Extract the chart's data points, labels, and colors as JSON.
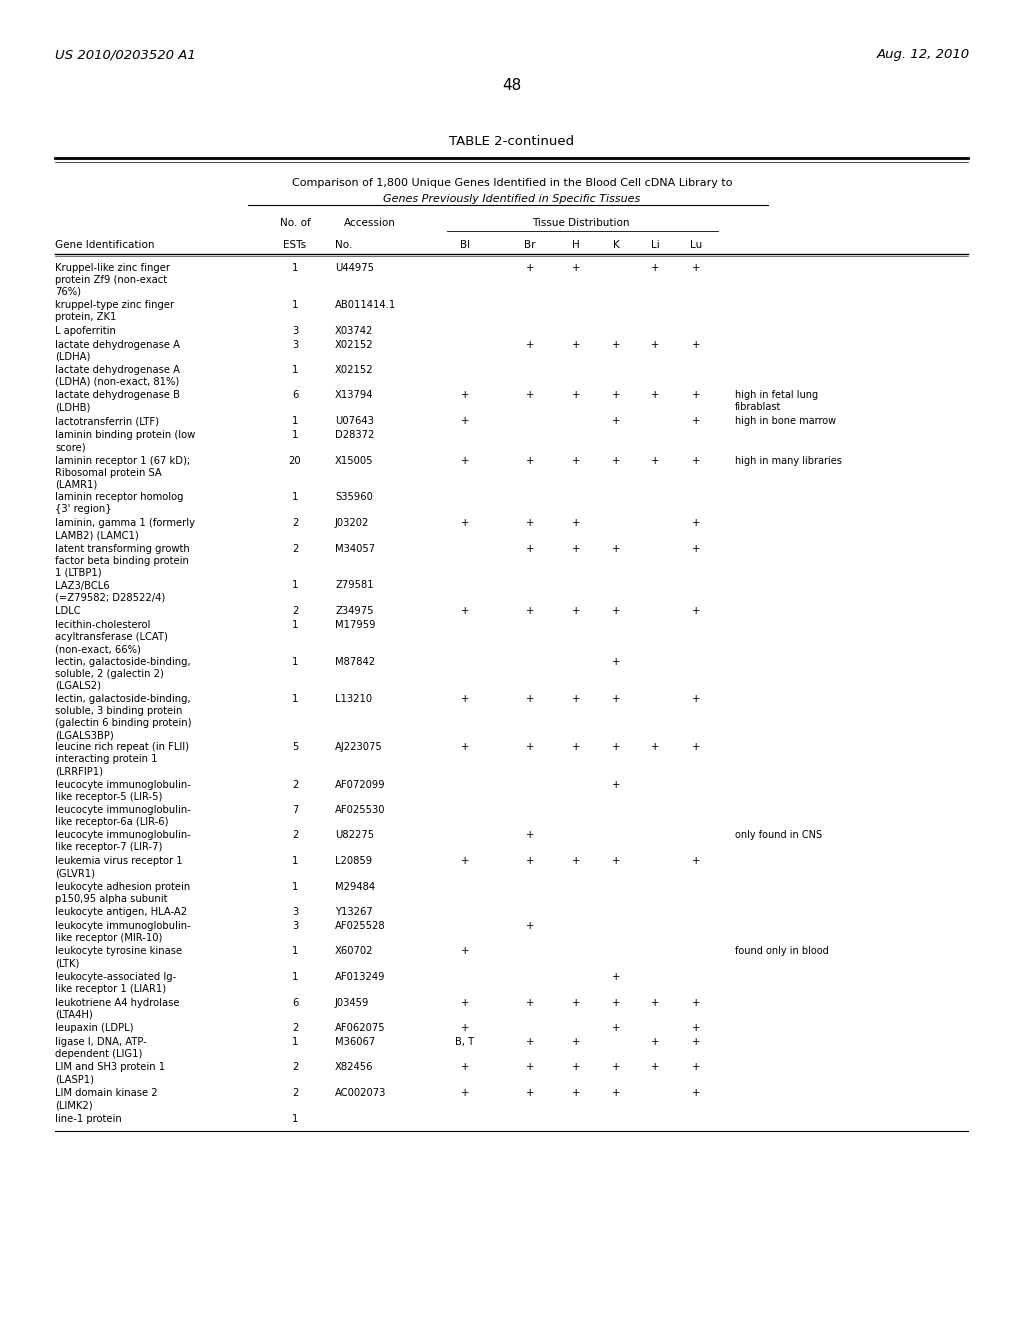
{
  "header_left": "US 2010/0203520 A1",
  "header_right": "Aug. 12, 2010",
  "page_number": "48",
  "table_title": "TABLE 2-continued",
  "subtitle1": "Comparison of 1,800 Unique Genes Identified in the Blood Cell cDNA Library to",
  "subtitle2": "Genes Previously Identified in Specific Tissues",
  "rows": [
    [
      "Kruppel-like zinc finger\nprotein Zf9 (non-exact\n76%)",
      "1",
      "U44975",
      "",
      "+",
      "+",
      "",
      "+",
      "+",
      ""
    ],
    [
      "kruppel-type zinc finger\nprotein, ZK1",
      "1",
      "AB011414.1",
      "",
      "",
      "",
      "",
      "",
      "",
      ""
    ],
    [
      "L apoferritin",
      "3",
      "X03742",
      "",
      "",
      "",
      "",
      "",
      "",
      ""
    ],
    [
      "lactate dehydrogenase A\n(LDHA)",
      "3",
      "X02152",
      "",
      "+",
      "+",
      "+",
      "+",
      "+",
      ""
    ],
    [
      "lactate dehydrogenase A\n(LDHA) (non-exact, 81%)",
      "1",
      "X02152",
      "",
      "",
      "",
      "",
      "",
      "",
      ""
    ],
    [
      "lactate dehydrogenase B\n(LDHB)",
      "6",
      "X13794",
      "+",
      "+",
      "+",
      "+",
      "+",
      "+",
      "high in fetal lung\nfibrablast"
    ],
    [
      "lactotransferrin (LTF)",
      "1",
      "U07643",
      "+",
      "",
      "",
      "+",
      "",
      "+",
      "high in bone marrow"
    ],
    [
      "laminin binding protein (low\nscore)",
      "1",
      "D28372",
      "",
      "",
      "",
      "",
      "",
      "",
      ""
    ],
    [
      "laminin receptor 1 (67 kD);\nRibosomal protein SA\n(LAMR1)",
      "20",
      "X15005",
      "+",
      "+",
      "+",
      "+",
      "+",
      "+",
      "high in many libraries"
    ],
    [
      "laminin receptor homolog\n{3' region}",
      "1",
      "S35960",
      "",
      "",
      "",
      "",
      "",
      "",
      ""
    ],
    [
      "laminin, gamma 1 (formerly\nLAMB2) (LAMC1)",
      "2",
      "J03202",
      "+",
      "+",
      "+",
      "",
      "",
      "+",
      ""
    ],
    [
      "latent transforming growth\nfactor beta binding protein\n1 (LTBP1)",
      "2",
      "M34057",
      "",
      "+",
      "+",
      "+",
      "",
      "+",
      ""
    ],
    [
      "LAZ3/BCL6\n(=Z79582; D28522/4)",
      "1",
      "Z79581",
      "",
      "",
      "",
      "",
      "",
      "",
      ""
    ],
    [
      "LDLC",
      "2",
      "Z34975",
      "+",
      "+",
      "+",
      "+",
      "",
      "+",
      ""
    ],
    [
      "lecithin-cholesterol\nacyltransferase (LCAT)\n(non-exact, 66%)",
      "1",
      "M17959",
      "",
      "",
      "",
      "",
      "",
      "",
      ""
    ],
    [
      "lectin, galactoside-binding,\nsoluble, 2 (galectin 2)\n(LGALS2)",
      "1",
      "M87842",
      "",
      "",
      "",
      "+",
      "",
      "",
      ""
    ],
    [
      "lectin, galactoside-binding,\nsoluble, 3 binding protein\n(galectin 6 binding protein)\n(LGALS3BP)",
      "1",
      "L13210",
      "+",
      "+",
      "+",
      "+",
      "",
      "+",
      ""
    ],
    [
      "leucine rich repeat (in FLII)\ninteracting protein 1\n(LRRFIP1)",
      "5",
      "AJ223075",
      "+",
      "+",
      "+",
      "+",
      "+",
      "+",
      ""
    ],
    [
      "leucocyte immunoglobulin-\nlike receptor-5 (LIR-5)",
      "2",
      "AF072099",
      "",
      "",
      "",
      "+",
      "",
      "",
      ""
    ],
    [
      "leucocyte immunoglobulin-\nlike receptor-6a (LIR-6)",
      "7",
      "AF025530",
      "",
      "",
      "",
      "",
      "",
      "",
      ""
    ],
    [
      "leucocyte immunoglobulin-\nlike receptor-7 (LIR-7)",
      "2",
      "U82275",
      "",
      "+",
      "",
      "",
      "",
      "",
      "only found in CNS"
    ],
    [
      "leukemia virus receptor 1\n(GLVR1)",
      "1",
      "L20859",
      "+",
      "+",
      "+",
      "+",
      "",
      "+",
      ""
    ],
    [
      "leukocyte adhesion protein\np150,95 alpha subunit",
      "1",
      "M29484",
      "",
      "",
      "",
      "",
      "",
      "",
      ""
    ],
    [
      "leukocyte antigen, HLA-A2",
      "3",
      "Y13267",
      "",
      "",
      "",
      "",
      "",
      "",
      ""
    ],
    [
      "leukocyte immunoglobulin-\nlike receptor (MIR-10)",
      "3",
      "AF025528",
      "",
      "+",
      "",
      "",
      "",
      "",
      ""
    ],
    [
      "leukocyte tyrosine kinase\n(LTK)",
      "1",
      "X60702",
      "+",
      "",
      "",
      "",
      "",
      "",
      "found only in blood"
    ],
    [
      "leukocyte-associated Ig-\nlike receptor 1 (LIAR1)",
      "1",
      "AF013249",
      "",
      "",
      "",
      "+",
      "",
      "",
      ""
    ],
    [
      "leukotriene A4 hydrolase\n(LTA4H)",
      "6",
      "J03459",
      "+",
      "+",
      "+",
      "+",
      "+",
      "+",
      ""
    ],
    [
      "leupaxin (LDPL)",
      "2",
      "AF062075",
      "+",
      "",
      "",
      "+",
      "",
      "+",
      ""
    ],
    [
      "ligase I, DNA, ATP-\ndependent (LIG1)",
      "1",
      "M36067",
      "B, T",
      "+",
      "+",
      "",
      "+",
      "+",
      ""
    ],
    [
      "LIM and SH3 protein 1\n(LASP1)",
      "2",
      "X82456",
      "+",
      "+",
      "+",
      "+",
      "+",
      "+",
      ""
    ],
    [
      "LIM domain kinase 2\n(LIMK2)",
      "2",
      "AC002073",
      "+",
      "+",
      "+",
      "+",
      "",
      "+",
      ""
    ],
    [
      "line-1 protein",
      "1",
      "",
      "",
      "",
      "",
      "",
      "",
      "",
      ""
    ]
  ],
  "background_color": "#ffffff",
  "text_color": "#000000"
}
